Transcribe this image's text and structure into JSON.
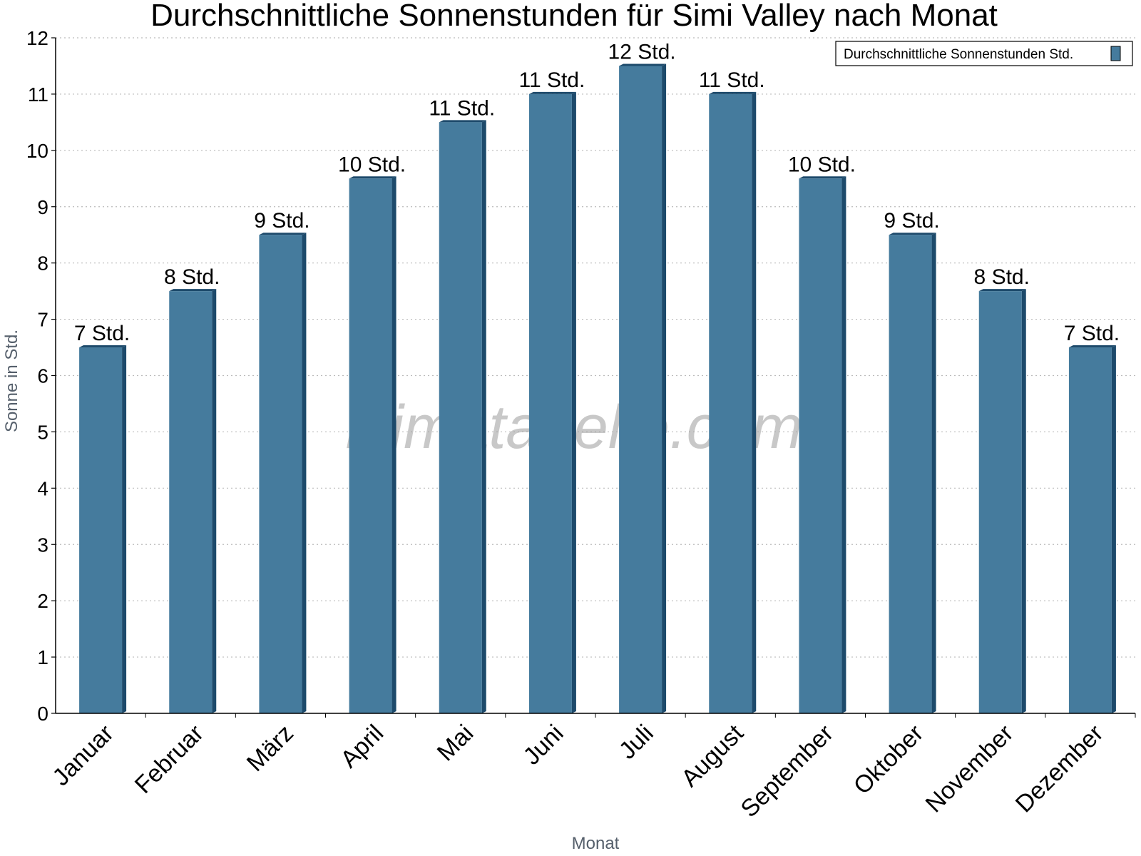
{
  "chart_data": {
    "type": "bar",
    "title": "Durchschnittliche Sonnenstunden für Simi Valley nach Monat",
    "xlabel": "Monat",
    "ylabel": "Sonne in Std.",
    "ylim": [
      0,
      12
    ],
    "yticks": [
      "0",
      "1",
      "2",
      "3",
      "4",
      "5",
      "6",
      "7",
      "8",
      "9",
      "10",
      "11",
      "12"
    ],
    "grid": true,
    "legend_position": "top-right",
    "categories": [
      "Januar",
      "Februar",
      "März",
      "April",
      "Mai",
      "Juni",
      "Juli",
      "August",
      "September",
      "Oktober",
      "November",
      "Dezember"
    ],
    "series": [
      {
        "name": "Durchschnittliche Sonnenstunden Std.",
        "values": [
          6.5,
          7.5,
          8.5,
          9.5,
          10.5,
          11,
          11.5,
          11,
          9.5,
          8.5,
          7.5,
          6.5
        ],
        "labels": [
          "7 Std.",
          "8 Std.",
          "9 Std.",
          "10 Std.",
          "11 Std.",
          "11 Std.",
          "12 Std.",
          "11 Std.",
          "10 Std.",
          "9 Std.",
          "8 Std.",
          "7 Std."
        ]
      }
    ],
    "colors": {
      "bar": "#457b9d",
      "bar_shadow": "#1d4a6b",
      "grid": "#bbbbbb",
      "axis": "#000000"
    }
  },
  "watermark": "klimatabelle.com"
}
